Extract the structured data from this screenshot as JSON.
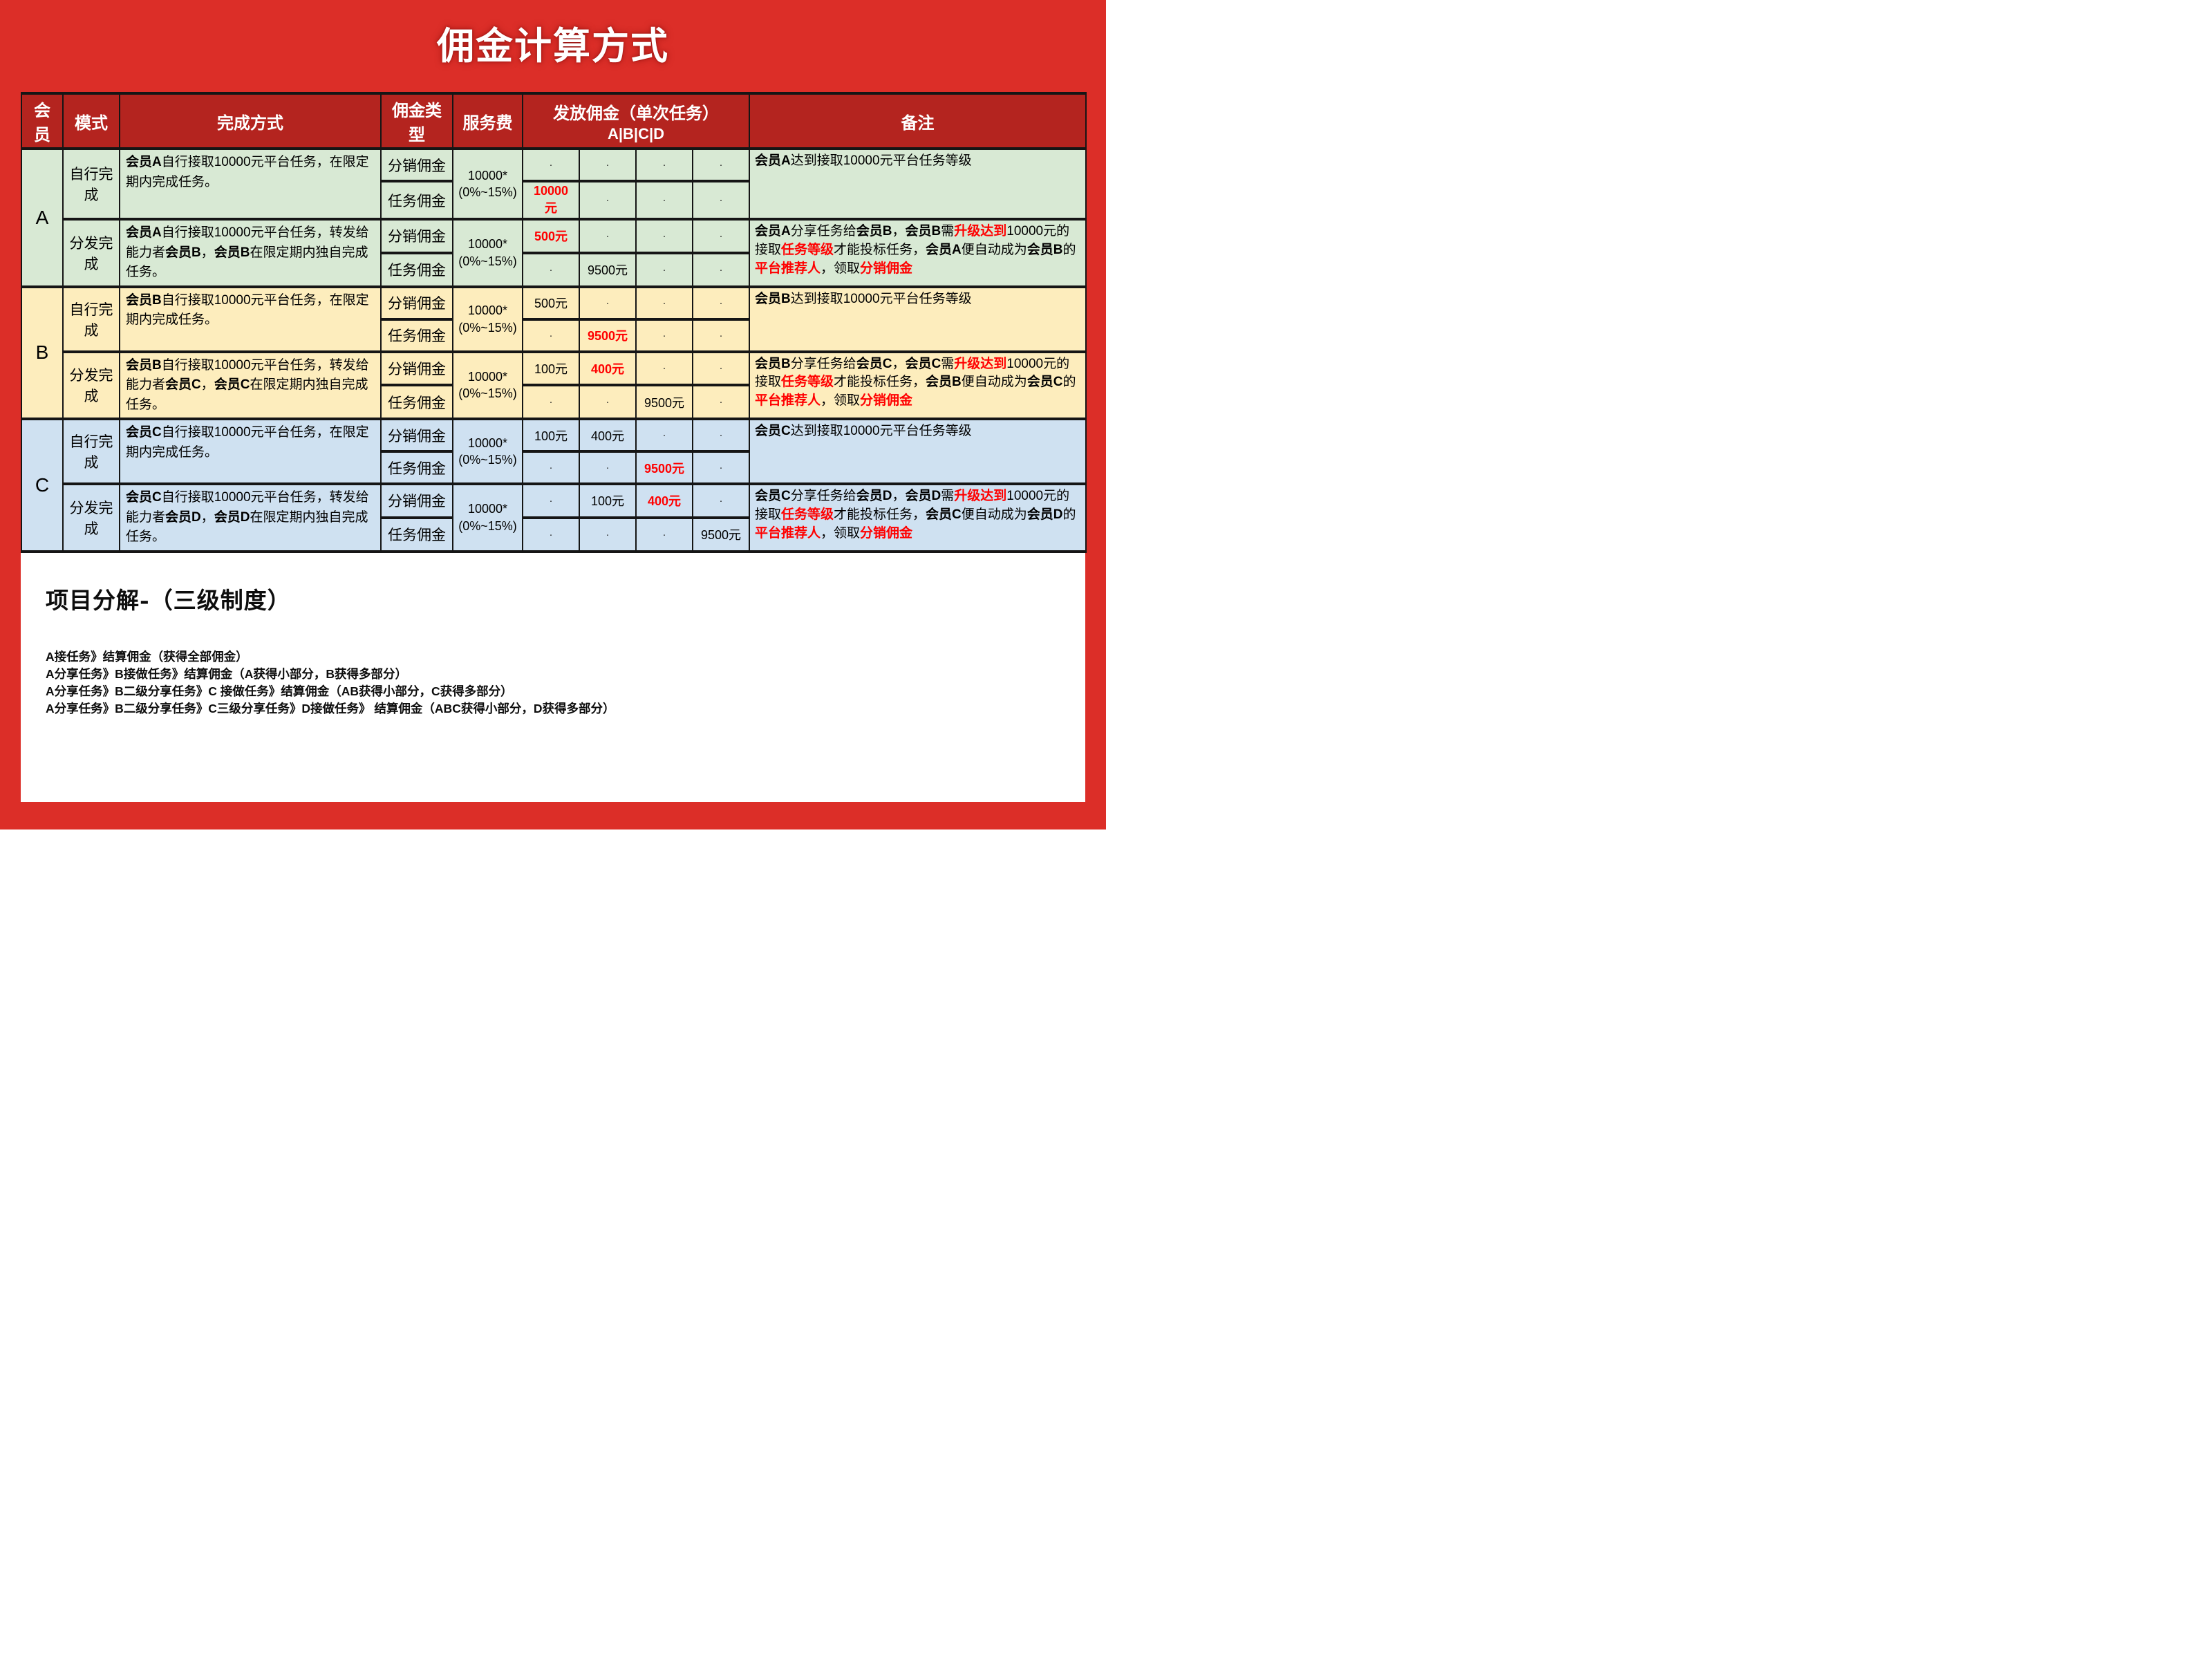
{
  "page": {
    "title": "佣金计算方式",
    "bg_color": "#DC2E28",
    "header_color": "#B4241F",
    "accent_red": "#FF0000"
  },
  "table": {
    "headers": {
      "member": "会员",
      "mode": "模式",
      "method": "完成方式",
      "commission_type": "佣金类型",
      "service_fee": "服务费",
      "payout": "发放佣金（单次任务）",
      "payout_sub": "A|B|C|D",
      "remark": "备注"
    },
    "groups": [
      {
        "member": "A",
        "color": "#D8E9D4",
        "modes": [
          {
            "mode": "自行完成",
            "desc": [
              {
                "t": "会员A",
                "b": true
              },
              {
                "t": "自行接取10000元平台任务，在限定期内完成任务。"
              }
            ],
            "service_fee": [
              "10000*",
              "(0%~15%)"
            ],
            "rows": [
              {
                "type": "分销佣金",
                "values": [
                  {
                    "t": "·"
                  },
                  {
                    "t": "·"
                  },
                  {
                    "t": "·"
                  },
                  {
                    "t": "·"
                  }
                ]
              },
              {
                "type": "任务佣金",
                "values": [
                  {
                    "t": "10000元",
                    "red": true
                  },
                  {
                    "t": "·"
                  },
                  {
                    "t": "·"
                  },
                  {
                    "t": "·"
                  }
                ]
              }
            ],
            "remark": [
              {
                "t": "会员A",
                "b": true
              },
              {
                "t": "达到接取10000元平台任务等级"
              }
            ]
          },
          {
            "mode": "分发完成",
            "desc": [
              {
                "t": "会员A",
                "b": true
              },
              {
                "t": "自行接取10000元平台任务，转发给能力者"
              },
              {
                "t": "会员B",
                "b": true
              },
              {
                "t": "，"
              },
              {
                "t": "会员B",
                "b": true
              },
              {
                "t": "在限定期内独自完成任务。"
              }
            ],
            "service_fee": [
              "10000*",
              "(0%~15%)"
            ],
            "rows": [
              {
                "type": "分销佣金",
                "values": [
                  {
                    "t": "500元",
                    "red": true
                  },
                  {
                    "t": "·"
                  },
                  {
                    "t": "·"
                  },
                  {
                    "t": "·"
                  }
                ]
              },
              {
                "type": "任务佣金",
                "values": [
                  {
                    "t": "·"
                  },
                  {
                    "t": "9500元"
                  },
                  {
                    "t": "·"
                  },
                  {
                    "t": "·"
                  }
                ]
              }
            ],
            "remark": [
              {
                "t": "会员A",
                "b": true
              },
              {
                "t": "分享任务给"
              },
              {
                "t": "会员B",
                "b": true
              },
              {
                "t": "，"
              },
              {
                "t": "会员B",
                "b": true
              },
              {
                "t": "需"
              },
              {
                "t": "升级达到",
                "red": true,
                "b": true
              },
              {
                "t": "10000元的接取"
              },
              {
                "t": "任务等级",
                "red": true,
                "b": true
              },
              {
                "t": "才能投标任务，"
              },
              {
                "t": "会员A",
                "b": true
              },
              {
                "t": "便自动成为"
              },
              {
                "t": "会员B",
                "b": true
              },
              {
                "t": "的"
              },
              {
                "t": "平台推荐人",
                "red": true,
                "b": true
              },
              {
                "t": "，领取"
              },
              {
                "t": "分销佣金",
                "red": true,
                "b": true
              }
            ]
          }
        ]
      },
      {
        "member": "B",
        "color": "#FDEDBD",
        "modes": [
          {
            "mode": "自行完成",
            "desc": [
              {
                "t": "会员B",
                "b": true
              },
              {
                "t": "自行接取10000元平台任务，在限定期内完成任务。"
              }
            ],
            "service_fee": [
              "10000*",
              "(0%~15%)"
            ],
            "rows": [
              {
                "type": "分销佣金",
                "values": [
                  {
                    "t": "500元"
                  },
                  {
                    "t": "·"
                  },
                  {
                    "t": "·"
                  },
                  {
                    "t": "·"
                  }
                ]
              },
              {
                "type": "任务佣金",
                "values": [
                  {
                    "t": "·"
                  },
                  {
                    "t": "9500元",
                    "red": true
                  },
                  {
                    "t": "·"
                  },
                  {
                    "t": "·"
                  }
                ]
              }
            ],
            "remark": [
              {
                "t": "会员B",
                "b": true
              },
              {
                "t": "达到接取10000元平台任务等级"
              }
            ]
          },
          {
            "mode": "分发完成",
            "desc": [
              {
                "t": "会员B",
                "b": true
              },
              {
                "t": "自行接取10000元平台任务，转发给能力者"
              },
              {
                "t": "会员C",
                "b": true
              },
              {
                "t": "，"
              },
              {
                "t": "会员C",
                "b": true
              },
              {
                "t": "在限定期内独自完成任务。"
              }
            ],
            "service_fee": [
              "10000*",
              "(0%~15%)"
            ],
            "rows": [
              {
                "type": "分销佣金",
                "values": [
                  {
                    "t": "100元"
                  },
                  {
                    "t": "400元",
                    "red": true
                  },
                  {
                    "t": "·"
                  },
                  {
                    "t": "·"
                  }
                ]
              },
              {
                "type": "任务佣金",
                "values": [
                  {
                    "t": "·"
                  },
                  {
                    "t": "·"
                  },
                  {
                    "t": "9500元"
                  },
                  {
                    "t": "·"
                  }
                ]
              }
            ],
            "remark": [
              {
                "t": "会员B",
                "b": true
              },
              {
                "t": "分享任务给"
              },
              {
                "t": "会员C",
                "b": true
              },
              {
                "t": "，"
              },
              {
                "t": "会员C",
                "b": true
              },
              {
                "t": "需"
              },
              {
                "t": "升级达到",
                "red": true,
                "b": true
              },
              {
                "t": "10000元的接取"
              },
              {
                "t": "任务等级",
                "red": true,
                "b": true
              },
              {
                "t": "才能投标任务，"
              },
              {
                "t": "会员B",
                "b": true
              },
              {
                "t": "便自动成为"
              },
              {
                "t": "会员C",
                "b": true
              },
              {
                "t": "的"
              },
              {
                "t": "平台推荐人",
                "red": true,
                "b": true
              },
              {
                "t": "，领取"
              },
              {
                "t": "分销佣金",
                "red": true,
                "b": true
              }
            ]
          }
        ]
      },
      {
        "member": "C",
        "color": "#CFE1F1",
        "modes": [
          {
            "mode": "自行完成",
            "desc": [
              {
                "t": "会员C",
                "b": true
              },
              {
                "t": "自行接取10000元平台任务，在限定期内完成任务。"
              }
            ],
            "service_fee": [
              "10000*",
              "(0%~15%)"
            ],
            "rows": [
              {
                "type": "分销佣金",
                "values": [
                  {
                    "t": "100元"
                  },
                  {
                    "t": "400元"
                  },
                  {
                    "t": "·"
                  },
                  {
                    "t": "·"
                  }
                ]
              },
              {
                "type": "任务佣金",
                "values": [
                  {
                    "t": "·"
                  },
                  {
                    "t": "·"
                  },
                  {
                    "t": "9500元",
                    "red": true
                  },
                  {
                    "t": "·"
                  }
                ]
              }
            ],
            "remark": [
              {
                "t": "会员C",
                "b": true
              },
              {
                "t": "达到接取10000元平台任务等级"
              }
            ]
          },
          {
            "mode": "分发完成",
            "desc": [
              {
                "t": "会员C",
                "b": true
              },
              {
                "t": "自行接取10000元平台任务，转发给能力者"
              },
              {
                "t": "会员D",
                "b": true
              },
              {
                "t": "，"
              },
              {
                "t": "会员D",
                "b": true
              },
              {
                "t": "在限定期内独自完成任务。"
              }
            ],
            "service_fee": [
              "10000*",
              "(0%~15%)"
            ],
            "rows": [
              {
                "type": "分销佣金",
                "values": [
                  {
                    "t": "·"
                  },
                  {
                    "t": "100元"
                  },
                  {
                    "t": "400元",
                    "red": true
                  },
                  {
                    "t": "·"
                  }
                ]
              },
              {
                "type": "任务佣金",
                "values": [
                  {
                    "t": "·"
                  },
                  {
                    "t": "·"
                  },
                  {
                    "t": "·"
                  },
                  {
                    "t": "9500元"
                  }
                ]
              }
            ],
            "remark": [
              {
                "t": "会员C",
                "b": true
              },
              {
                "t": "分享任务给"
              },
              {
                "t": "会员D",
                "b": true
              },
              {
                "t": "，"
              },
              {
                "t": "会员D",
                "b": true
              },
              {
                "t": "需"
              },
              {
                "t": "升级达到",
                "red": true,
                "b": true
              },
              {
                "t": "10000元的接取"
              },
              {
                "t": "任务等级",
                "red": true,
                "b": true
              },
              {
                "t": "才能投标任务，"
              },
              {
                "t": "会员C",
                "b": true
              },
              {
                "t": "便自动成为"
              },
              {
                "t": "会员D",
                "b": true
              },
              {
                "t": "的"
              },
              {
                "t": "平台推荐人",
                "red": true,
                "b": true
              },
              {
                "t": "，领取"
              },
              {
                "t": "分销佣金",
                "red": true,
                "b": true
              }
            ]
          }
        ]
      }
    ]
  },
  "breakdown": {
    "heading": "项目分解-（三级制度）",
    "lines": [
      "A接任务》结算佣金（获得全部佣金）",
      "A分享任务》B接做任务》结算佣金（A获得小部分，B获得多部分）",
      "A分享任务》B二级分享任务》C 接做任务》结算佣金（AB获得小部分，C获得多部分）",
      "A分享任务》B二级分享任务》C三级分享任务》D接做任务》 结算佣金（ABC获得小部分，D获得多部分）"
    ]
  }
}
